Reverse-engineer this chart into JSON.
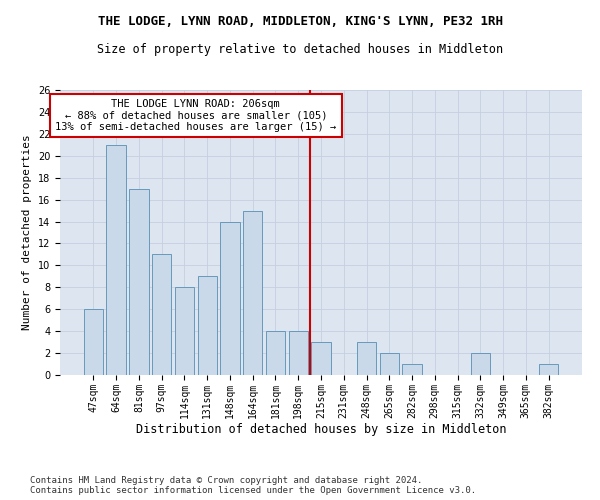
{
  "title": "THE LODGE, LYNN ROAD, MIDDLETON, KING'S LYNN, PE32 1RH",
  "subtitle": "Size of property relative to detached houses in Middleton",
  "xlabel": "Distribution of detached houses by size in Middleton",
  "ylabel": "Number of detached properties",
  "categories": [
    "47sqm",
    "64sqm",
    "81sqm",
    "97sqm",
    "114sqm",
    "131sqm",
    "148sqm",
    "164sqm",
    "181sqm",
    "198sqm",
    "215sqm",
    "231sqm",
    "248sqm",
    "265sqm",
    "282sqm",
    "298sqm",
    "315sqm",
    "332sqm",
    "349sqm",
    "365sqm",
    "382sqm"
  ],
  "values": [
    6,
    21,
    17,
    11,
    8,
    9,
    14,
    15,
    4,
    4,
    3,
    0,
    3,
    2,
    1,
    0,
    0,
    2,
    0,
    0,
    1
  ],
  "bar_color": "#c9d9ea",
  "bar_edge_color": "#6699bb",
  "grid_color": "#c5cfe0",
  "background_color": "#dde6f0",
  "vline_x_index": 9.5,
  "vline_color": "#cc0000",
  "annotation_text": "THE LODGE LYNN ROAD: 206sqm\n← 88% of detached houses are smaller (105)\n13% of semi-detached houses are larger (15) →",
  "annotation_box_color": "#ffffff",
  "annotation_box_edge_color": "#cc0000",
  "ylim": [
    0,
    26
  ],
  "yticks": [
    0,
    2,
    4,
    6,
    8,
    10,
    12,
    14,
    16,
    18,
    20,
    22,
    24,
    26
  ],
  "footer": "Contains HM Land Registry data © Crown copyright and database right 2024.\nContains public sector information licensed under the Open Government Licence v3.0.",
  "title_fontsize": 9,
  "subtitle_fontsize": 8.5,
  "xlabel_fontsize": 8.5,
  "ylabel_fontsize": 8,
  "tick_fontsize": 7,
  "annotation_fontsize": 7.5,
  "footer_fontsize": 6.5
}
